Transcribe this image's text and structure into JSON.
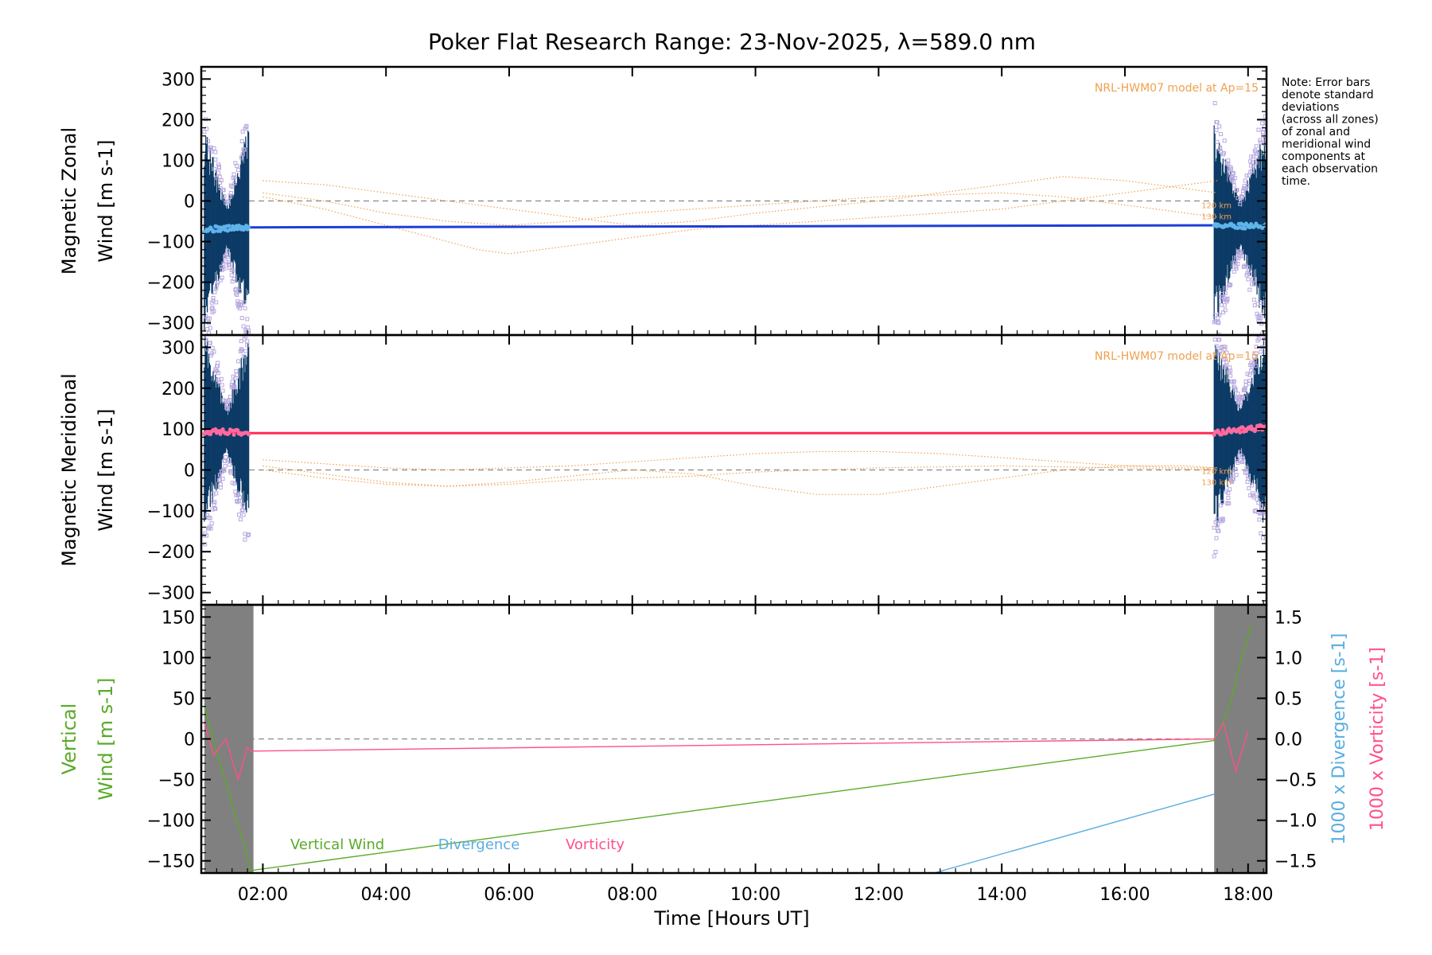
{
  "chart_data": {
    "title": "Poker Flat Research Range: 23-Nov-2025, λ=589.0 nm",
    "note": "Note: Error bars denote standard deviations (across all zones) of zonal and meridional wind components at each observation time.",
    "note_lines": [
      "Note: Error bars",
      "denote standard",
      "deviations",
      "(across all zones)",
      "of zonal and",
      "meridional wind",
      "components at",
      "each observation",
      "time."
    ],
    "xaxis": {
      "label": "Time [Hours UT]",
      "range": [
        1.0,
        18.3
      ],
      "ticks": [
        2,
        4,
        6,
        8,
        10,
        12,
        14,
        16,
        18
      ],
      "tick_labels": [
        "02:00",
        "04:00",
        "06:00",
        "08:00",
        "10:00",
        "12:00",
        "14:00",
        "16:00",
        "18:00"
      ]
    },
    "colors": {
      "zonal_wind": "#1f3fd6",
      "zonal_points": "#5fb4e8",
      "meridional_wind": "#ff2b55",
      "meridional_points": "#ff6aa0",
      "error_bar": "#0d3b66",
      "scatter_zone": "#b8a8e0",
      "model": "#f0a050",
      "zero_line": "#888888",
      "vertical_wind": "#5aaa28",
      "divergence": "#5aaee0",
      "vorticity": "#ff4f88",
      "gap_bars": "#808080"
    },
    "panels": [
      {
        "type": "line",
        "ylabel": [
          "Magnetic Zonal",
          "Wind [m s-1]"
        ],
        "ylim": [
          -330,
          330
        ],
        "yticks": [
          300,
          200,
          100,
          0,
          -100,
          -200,
          -300
        ],
        "model_label": "NRL-HWM07 model at Ap=15",
        "model_heights": [
          "120 km",
          "130 km"
        ],
        "wind": {
          "name": "Zonal wind",
          "x": [
            1.05,
            1.8,
            17.45,
            18.3
          ],
          "y": [
            -70,
            -65,
            -60,
            -62
          ]
        },
        "model_curves": [
          {
            "x": [
              2,
              3,
              4,
              5,
              5.5,
              6,
              7,
              8,
              9,
              10,
              12,
              14,
              15,
              16,
              17,
              17.5
            ],
            "y": [
              10,
              -20,
              -60,
              -100,
              -120,
              -130,
              -110,
              -90,
              -70,
              -60,
              -40,
              -20,
              0,
              20,
              40,
              50
            ]
          },
          {
            "x": [
              2,
              3,
              4,
              5,
              6,
              7,
              8,
              9,
              10,
              12,
              13,
              14,
              15,
              16,
              17,
              17.5
            ],
            "y": [
              50,
              40,
              20,
              0,
              -20,
              -40,
              -60,
              -50,
              -30,
              0,
              20,
              40,
              60,
              50,
              30,
              20
            ]
          },
          {
            "x": [
              2,
              3,
              4,
              5,
              6,
              7,
              8,
              9,
              10,
              12,
              14,
              15,
              16,
              17,
              17.5
            ],
            "y": [
              20,
              0,
              -30,
              -50,
              -60,
              -50,
              -30,
              -20,
              -10,
              10,
              20,
              10,
              -10,
              -30,
              -40
            ]
          }
        ]
      },
      {
        "type": "line",
        "ylabel": [
          "Magnetic Meridional",
          "Wind [m s-1]"
        ],
        "ylim": [
          -330,
          330
        ],
        "yticks": [
          300,
          200,
          100,
          0,
          -100,
          -200,
          -300
        ],
        "model_label": "NRL-HWM07 model at Ap=15",
        "model_heights": [
          "120 km",
          "130 km"
        ],
        "wind": {
          "name": "Meridional wind",
          "x": [
            1.05,
            1.8,
            17.45,
            18.3
          ],
          "y": [
            95,
            90,
            90,
            105
          ]
        },
        "model_curves": [
          {
            "x": [
              2,
              3,
              4,
              5,
              6,
              7,
              8,
              9,
              10,
              11,
              12,
              13,
              14,
              15,
              16,
              17,
              17.5
            ],
            "y": [
              25,
              15,
              5,
              0,
              5,
              10,
              20,
              30,
              40,
              45,
              45,
              40,
              30,
              20,
              10,
              5,
              5
            ]
          },
          {
            "x": [
              2,
              3,
              4,
              5,
              6,
              7,
              8,
              9,
              10,
              11,
              12,
              13,
              14,
              15,
              16,
              17,
              17.5
            ],
            "y": [
              10,
              -10,
              -30,
              -40,
              -30,
              -15,
              0,
              -10,
              -40,
              -60,
              -60,
              -40,
              -20,
              0,
              10,
              10,
              5
            ]
          },
          {
            "x": [
              2,
              3,
              4,
              5,
              6,
              7,
              8,
              9,
              10,
              12,
              14,
              16,
              17.5
            ],
            "y": [
              0,
              -20,
              -35,
              -40,
              -35,
              -25,
              -20,
              -15,
              -5,
              5,
              10,
              5,
              0
            ]
          }
        ]
      },
      {
        "type": "line",
        "ylabel": [
          "Vertical",
          "Wind [m s-1]"
        ],
        "ylim": [
          -165,
          165
        ],
        "yticks": [
          150,
          100,
          50,
          0,
          -50,
          -100,
          -150
        ],
        "y2label_divergence": "1000 x Divergence [s-1]",
        "y2label_vorticity": "1000 x Vorticity [s-1]",
        "y2lim": [
          -1.65,
          1.65
        ],
        "y2ticks": [
          1.5,
          1.0,
          0.5,
          0.0,
          -0.5,
          -1.0,
          -1.5
        ],
        "y2tick_labels": [
          "1.5",
          "1.0",
          "0.5",
          "0.0",
          "−0.5",
          "−1.0",
          "−1.5"
        ],
        "legend": [
          "Vertical Wind",
          "Divergence",
          "Vorticity"
        ],
        "series": [
          {
            "name": "Vertical Wind",
            "axis": "left",
            "x": [
              1.05,
              1.3,
              1.5,
              1.7,
              1.8,
              17.45,
              17.7,
              17.9,
              18.05
            ],
            "y": [
              40,
              -30,
              -80,
              -130,
              -162,
              -2,
              40,
              100,
              140
            ]
          },
          {
            "name": "Divergence",
            "axis": "right",
            "x": [
              12.9,
              17.45
            ],
            "y": [
              -1.65,
              -0.68
            ]
          },
          {
            "name": "Vorticity",
            "axis": "right",
            "x": [
              1.05,
              1.2,
              1.4,
              1.6,
              1.75,
              1.8,
              17.45,
              17.6,
              17.8,
              18.0
            ],
            "y": [
              0.2,
              -0.2,
              0.0,
              -0.5,
              -0.1,
              -0.15,
              0.0,
              0.2,
              -0.4,
              0.1
            ]
          }
        ]
      }
    ]
  }
}
